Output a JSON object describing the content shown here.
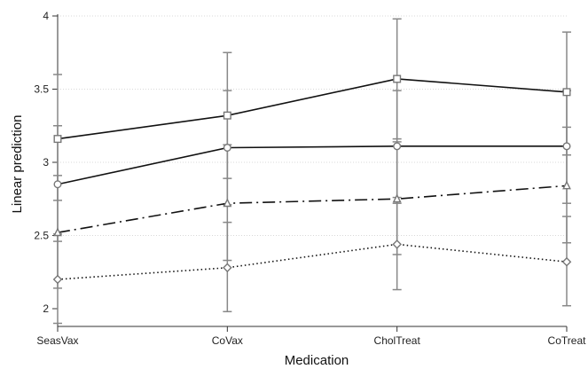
{
  "chart_data": {
    "type": "line",
    "xlabel": "Medication",
    "ylabel": "Linear prediction",
    "categories": [
      "SeasVax",
      "CoVax",
      "CholTreat",
      "CoTreat"
    ],
    "ylim": [
      2,
      4
    ],
    "yticks": [
      "2",
      "2.5",
      "3",
      "3.5",
      "4"
    ],
    "grid": "horizontal dotted",
    "legend": "none",
    "series": [
      {
        "marker": "square",
        "line_style": "solid",
        "values": [
          3.16,
          3.32,
          3.57,
          3.48
        ],
        "ci_lower": [
          2.74,
          2.89,
          3.16,
          3.05
        ],
        "ci_upper": [
          3.6,
          3.75,
          3.98,
          3.89
        ]
      },
      {
        "marker": "circle",
        "line_style": "solid",
        "values": [
          2.85,
          3.1,
          3.11,
          3.11
        ],
        "ci_lower": [
          2.46,
          2.71,
          2.72,
          2.72
        ],
        "ci_upper": [
          3.25,
          3.49,
          3.49,
          3.49
        ]
      },
      {
        "marker": "triangle",
        "line_style": "longdash-dot",
        "values": [
          2.52,
          2.72,
          2.75,
          2.84
        ],
        "ci_lower": [
          2.14,
          2.33,
          2.37,
          2.45
        ],
        "ci_upper": [
          2.91,
          3.12,
          3.14,
          3.24
        ]
      },
      {
        "marker": "diamond",
        "line_style": "dotted",
        "values": [
          2.2,
          2.28,
          2.44,
          2.32
        ],
        "ci_lower": [
          1.9,
          1.98,
          2.13,
          2.02
        ],
        "ci_upper": [
          2.51,
          2.59,
          2.76,
          2.63
        ]
      }
    ],
    "colors": {
      "line": "#111111",
      "marker": "#777777",
      "error_bar": "#888888",
      "grid": "#cccccc"
    }
  }
}
